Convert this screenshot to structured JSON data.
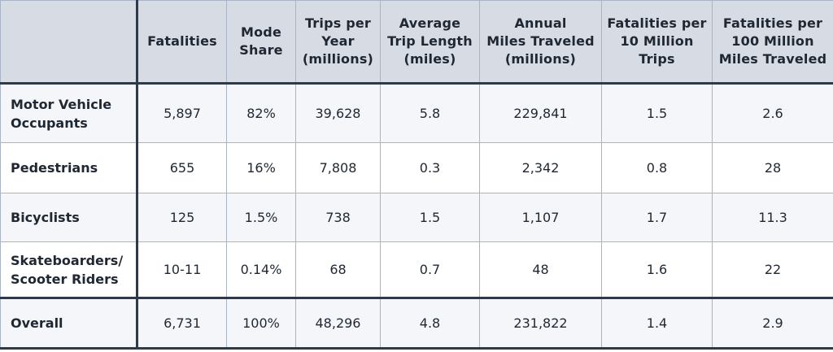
{
  "columns": [
    "",
    "Fatalities",
    "Mode\nShare",
    "Trips per\nYear\n(millions)",
    "Average\nTrip Length\n(miles)",
    "Annual\nMiles Traveled\n(millions)",
    "Fatalities per\n10 Million\nTrips",
    "Fatalities per\n100 Million\nMiles Traveled"
  ],
  "rows": [
    {
      "label": "Motor Vehicle\nOccupants",
      "values": [
        "5,897",
        "82%",
        "39,628",
        "5.8",
        "229,841",
        "1.5",
        "2.6"
      ]
    },
    {
      "label": "Pedestrians",
      "values": [
        "655",
        "16%",
        "7,808",
        "0.3",
        "2,342",
        "0.8",
        "28"
      ]
    },
    {
      "label": "Bicyclists",
      "values": [
        "125",
        "1.5%",
        "738",
        "1.5",
        "1,107",
        "1.7",
        "11.3"
      ]
    },
    {
      "label": "Skateboarders/\nScooter Riders",
      "values": [
        "10-11",
        "0.14%",
        "68",
        "0.7",
        "48",
        "1.6",
        "22"
      ]
    },
    {
      "label": "Overall",
      "values": [
        "6,731",
        "100%",
        "48,296",
        "4.8",
        "231,822",
        "1.4",
        "2.9"
      ]
    }
  ]
}
